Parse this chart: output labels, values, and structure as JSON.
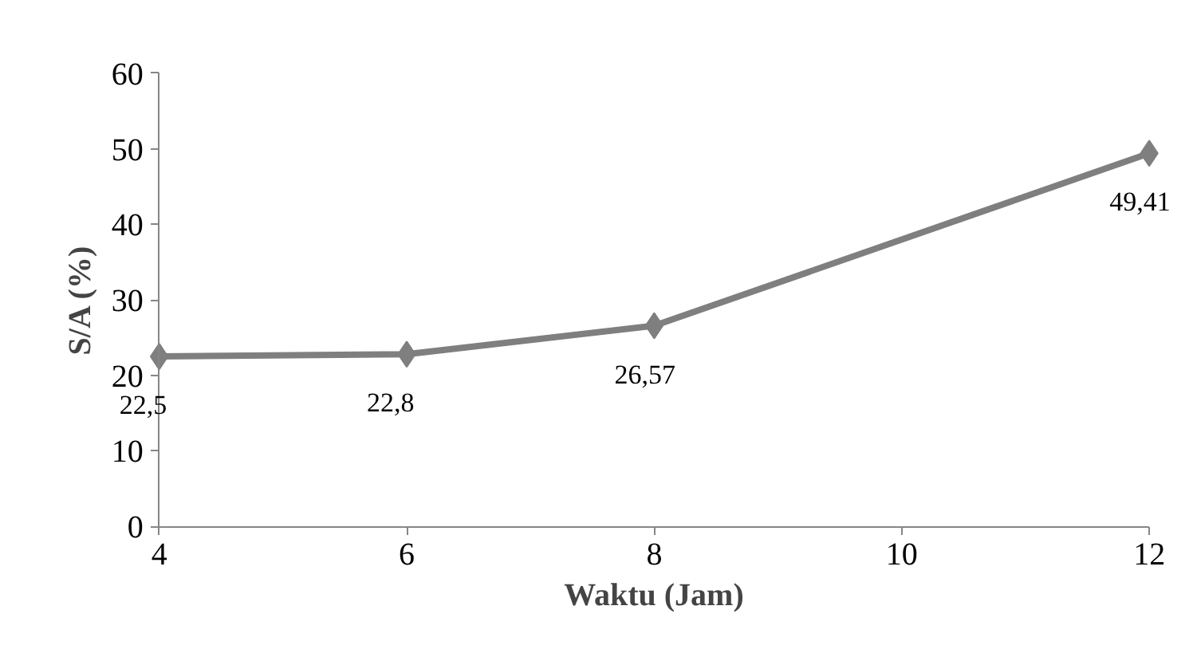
{
  "chart_data": {
    "type": "line",
    "xlabel": "Waktu (Jam)",
    "ylabel": "S/A (%)",
    "x": [
      4,
      6,
      8,
      12
    ],
    "series": [
      {
        "color": "#7f7f7f",
        "values": [
          22.5,
          22.8,
          26.57,
          49.41
        ],
        "value_labels": [
          "22,5",
          "22,8",
          "26,57",
          "49,41"
        ]
      }
    ],
    "xlim": [
      4,
      12
    ],
    "xticks": [
      4,
      6,
      8,
      10,
      12
    ],
    "ylim": [
      0,
      60
    ],
    "yticks": [
      0,
      10,
      20,
      30,
      40,
      50,
      60
    ],
    "grid": false,
    "marker": "diamond",
    "line_style": "solid"
  }
}
